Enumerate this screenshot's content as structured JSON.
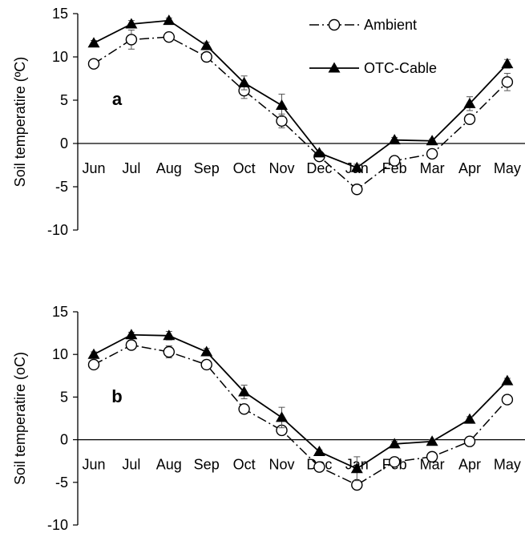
{
  "chart_data": [
    {
      "type": "line",
      "panel_label": "a",
      "ylabel": "Soil temperatire (ºC)",
      "ylim": [
        -10,
        15
      ],
      "yticks": [
        -10,
        -5,
        0,
        5,
        10,
        15
      ],
      "categories": [
        "Jun",
        "Jul",
        "Aug",
        "Sep",
        "Oct",
        "Nov",
        "Dec",
        "Jan",
        "Feb",
        "Mar",
        "Apr",
        "May"
      ],
      "series": [
        {
          "name": "Ambient",
          "values": [
            9.2,
            12.0,
            12.3,
            10.0,
            6.1,
            2.6,
            -1.5,
            -5.3,
            -2.0,
            -1.2,
            2.8,
            7.1
          ],
          "errors": [
            0.4,
            1.1,
            0.4,
            0.3,
            0.9,
            0.8,
            0.2,
            0.4,
            0.3,
            0.3,
            0.5,
            1.0
          ]
        },
        {
          "name": "OTC-Cable",
          "values": [
            11.6,
            13.8,
            14.2,
            11.3,
            7.0,
            4.4,
            -1.1,
            -2.8,
            0.4,
            0.3,
            4.6,
            9.2
          ],
          "errors": [
            0.3,
            0.4,
            0.3,
            0.4,
            0.8,
            1.3,
            0.2,
            0.4,
            0.3,
            0.2,
            0.8,
            0.5
          ]
        }
      ]
    },
    {
      "type": "line",
      "panel_label": "b",
      "ylabel": "Soil temperatire (oC)",
      "ylim": [
        -10,
        15
      ],
      "yticks": [
        -10,
        -5,
        0,
        5,
        10,
        15
      ],
      "categories": [
        "Jun",
        "Jul",
        "Aug",
        "Sep",
        "Oct",
        "Nov",
        "Dec",
        "Jan",
        "Feb",
        "Mar",
        "Apr",
        "May"
      ],
      "series": [
        {
          "name": "Ambient",
          "values": [
            8.8,
            11.1,
            10.3,
            8.8,
            3.6,
            1.1,
            -3.2,
            -5.3,
            -2.6,
            -2.0,
            -0.2,
            4.7
          ],
          "errors": [
            0.3,
            0.4,
            0.7,
            0.4,
            0.4,
            0.4,
            0.3,
            0.5,
            0.4,
            0.3,
            0.3,
            0.4
          ]
        },
        {
          "name": "OTC-Cable",
          "values": [
            10.0,
            12.3,
            12.2,
            10.3,
            5.6,
            2.6,
            -1.4,
            -3.4,
            -0.5,
            -0.2,
            2.4,
            6.9
          ],
          "errors": [
            0.3,
            0.3,
            0.5,
            0.4,
            0.8,
            1.2,
            0.2,
            1.4,
            0.3,
            0.2,
            0.3,
            0.3
          ]
        }
      ]
    }
  ]
}
